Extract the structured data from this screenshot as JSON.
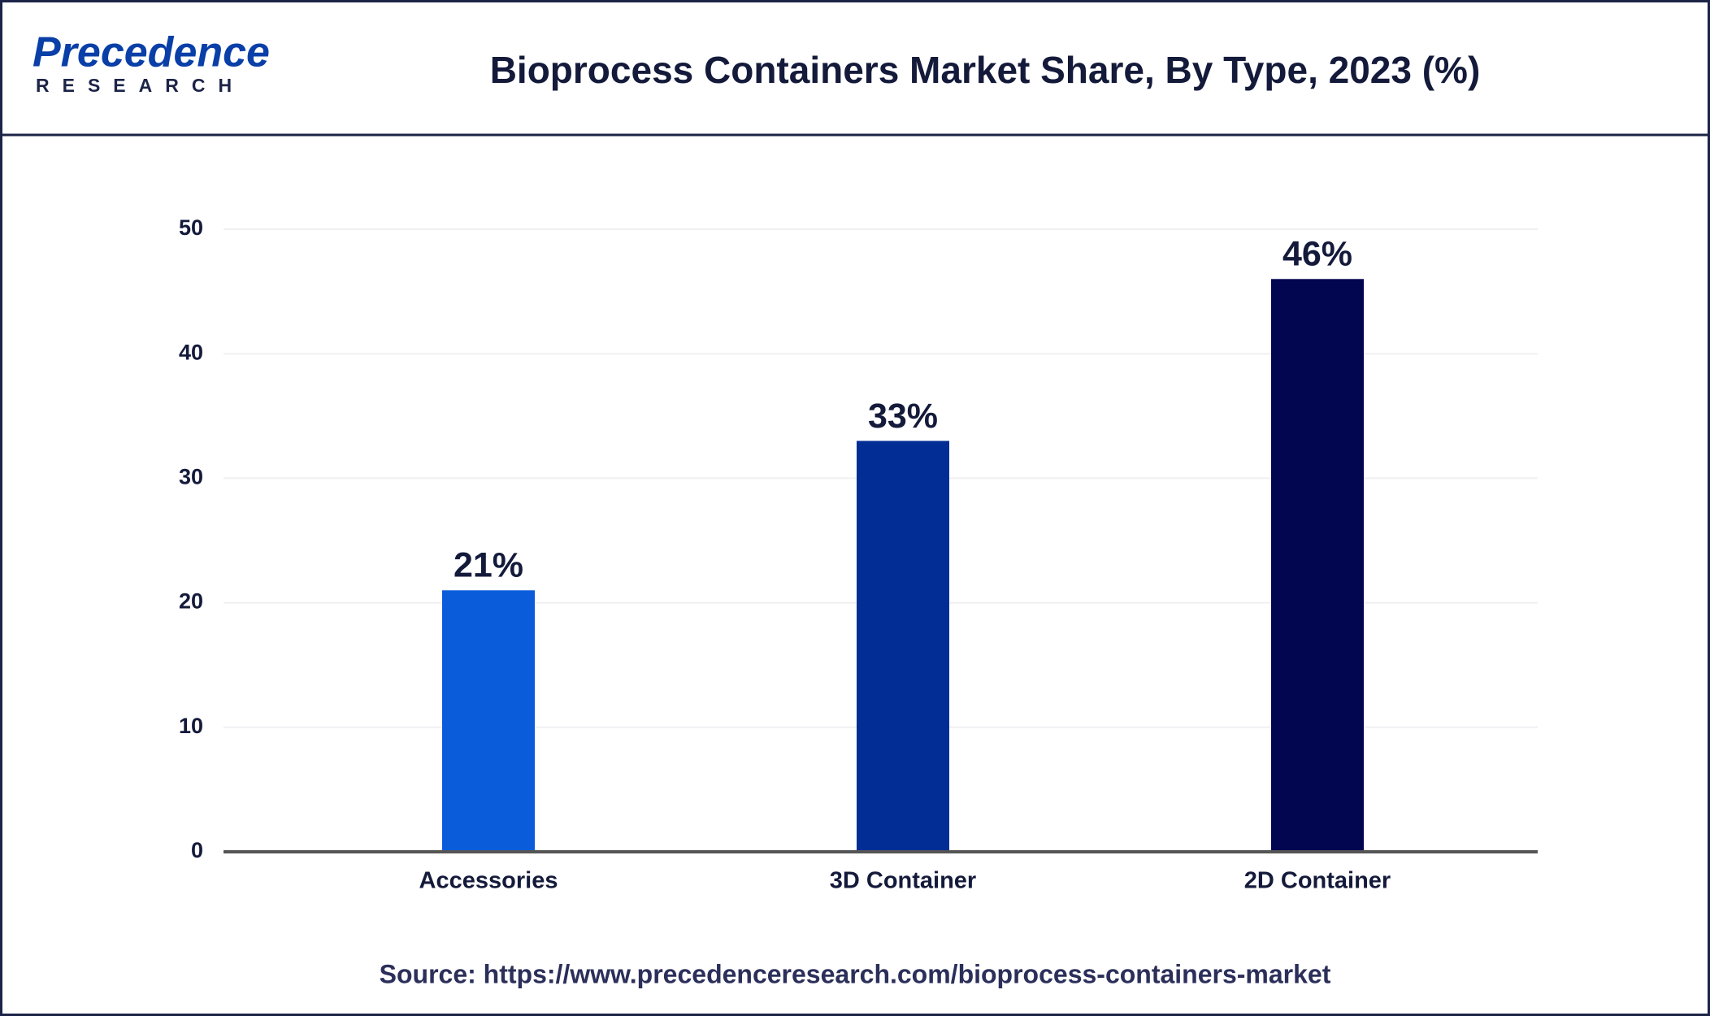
{
  "logo": {
    "name": "Precedence",
    "subtitle": "RESEARCH"
  },
  "chart_data": {
    "type": "bar",
    "title": "Bioprocess Containers Market Share, By Type, 2023 (%)",
    "categories": [
      "Accessories",
      "3D Container",
      "2D Container"
    ],
    "values": [
      21,
      33,
      46
    ],
    "value_labels": [
      "21%",
      "33%",
      "46%"
    ],
    "colors": [
      "#0a5cdb",
      "#022d94",
      "#020550"
    ],
    "ylim": [
      0,
      50
    ],
    "yticks": [
      0,
      10,
      20,
      30,
      40,
      50
    ],
    "grid": true,
    "source": "Source: https://www.precedenceresearch.com/bioprocess-containers-market"
  }
}
